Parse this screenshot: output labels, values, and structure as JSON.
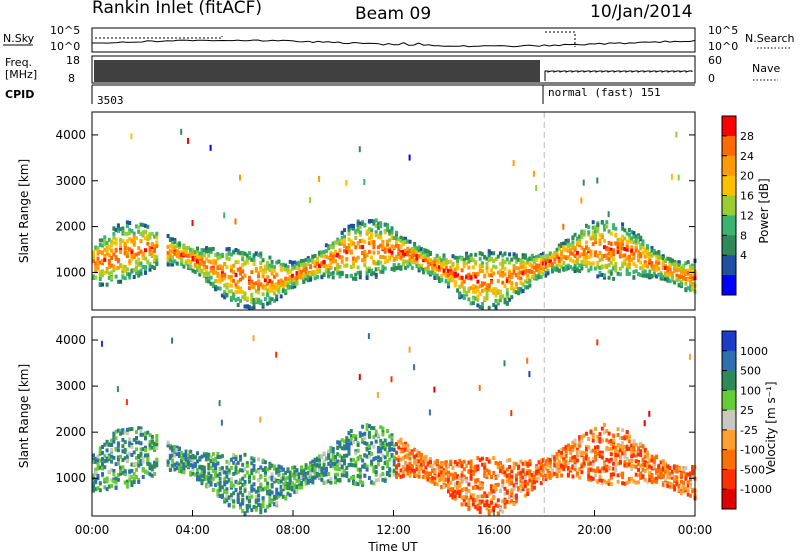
{
  "header": {
    "station": "Rankin Inlet (fitACF)",
    "beam": "Beam 09",
    "date": "10/Jan/2014"
  },
  "top_panels": {
    "nsky_label": "N.Sky",
    "nsearch_label": "N.Search",
    "nsky_ticks": [
      "10^5",
      "10^0"
    ],
    "nsearch_ticks": [
      "10^5",
      "10^0"
    ],
    "freq_label_line1": "Freq.",
    "freq_label_line2": "[MHz]",
    "freq_ticks": [
      "18",
      "8"
    ],
    "nave_label": "Nave",
    "nave_ticks": [
      "60",
      "0"
    ],
    "cpid_label": "CPID",
    "cpid_segments": [
      {
        "text": "3503"
      },
      {
        "text": "normal (fast) 151"
      }
    ]
  },
  "chart_data": [
    {
      "type": "heatmap",
      "name": "power",
      "xlabel": "",
      "ylabel": "Slant Range [km]",
      "x_ticks": [
        "00:00",
        "04:00",
        "08:00",
        "12:00",
        "16:00",
        "20:00",
        "00:00"
      ],
      "x_range_hours": [
        0,
        24
      ],
      "y_range_km": [
        180,
        4500
      ],
      "y_ticks": [
        1000,
        2000,
        3000,
        4000
      ],
      "colorbar": {
        "label": "Power [dB]",
        "ticks": [
          28,
          24,
          20,
          16,
          12,
          8,
          4
        ],
        "colors": [
          "#ff0000",
          "#ff6a00",
          "#ff9a00",
          "#ffc000",
          "#9acd32",
          "#3cb371",
          "#2e8b57",
          "#2050a0",
          "#0000ff"
        ]
      },
      "mode_change_hour": 18.0
    },
    {
      "type": "heatmap",
      "name": "velocity",
      "xlabel": "Time UT",
      "ylabel": "Slant Range [km]",
      "x_ticks": [
        "00:00",
        "04:00",
        "08:00",
        "12:00",
        "16:00",
        "20:00",
        "00:00"
      ],
      "x_range_hours": [
        0,
        24
      ],
      "y_range_km": [
        180,
        4500
      ],
      "y_ticks": [
        1000,
        2000,
        3000,
        4000
      ],
      "colorbar": {
        "label": "Velocity [m s⁻¹]",
        "ticks": [
          1000,
          500,
          100,
          25,
          -25,
          -100,
          -500,
          -1000
        ],
        "colors": [
          "#1a3cc8",
          "#2e6fb0",
          "#2e8b57",
          "#66cc33",
          "#c8c8c0",
          "#ffa030",
          "#ff7000",
          "#ff3000",
          "#e00000"
        ]
      },
      "mode_change_hour": 18.0
    }
  ]
}
